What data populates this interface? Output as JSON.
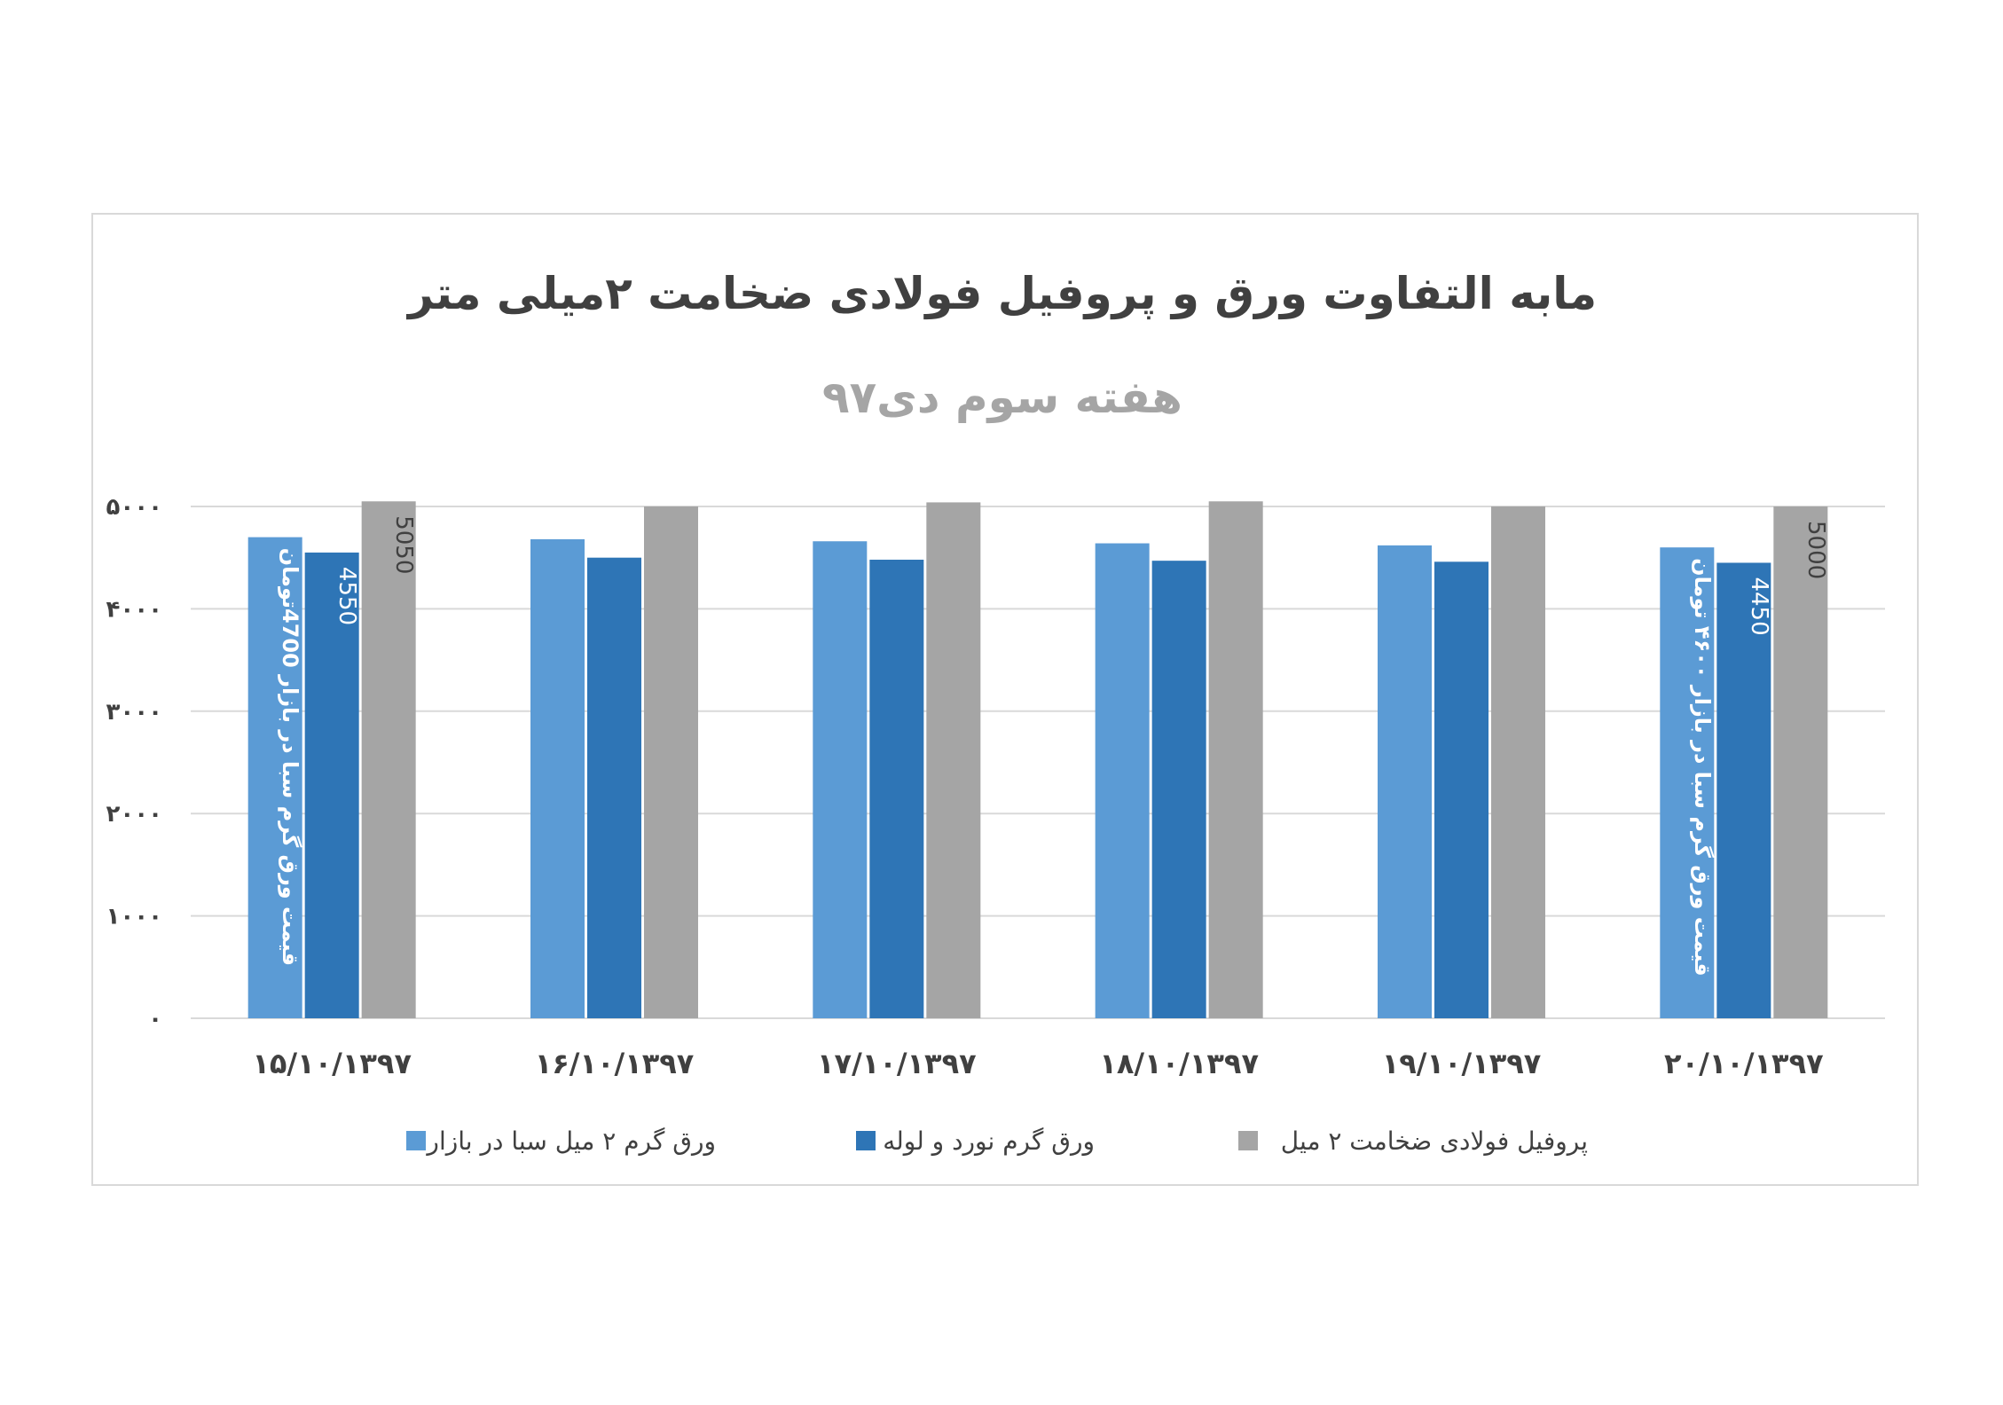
{
  "chart_data": {
    "type": "bar",
    "title": "مابه التفاوت ورق  و پروفیل فولادی ضخامت ۲میلی متر",
    "subtitle": "هفته سوم دی۹۷",
    "categories": [
      "۱۵/۱۰/۱۳۹۷",
      "۱۶/۱۰/۱۳۹۷",
      "۱۷/۱۰/۱۳۹۷",
      "۱۸/۱۰/۱۳۹۷",
      "۱۹/۱۰/۱۳۹۷",
      "۲۰/۱۰/۱۳۹۷"
    ],
    "series": [
      {
        "name": "ورق گرم ۲ میل سبا در بازار",
        "color": "#5b9bd5",
        "values": [
          4700,
          4680,
          4660,
          4640,
          4620,
          4600
        ]
      },
      {
        "name": "ورق گرم نورد و لوله",
        "color": "#2e75b6",
        "values": [
          4550,
          4500,
          4480,
          4470,
          4460,
          4450
        ]
      },
      {
        "name": "پروفیل فولادی ضخامت ۲ میل",
        "color": "#a5a5a5",
        "values": [
          5050,
          5000,
          5040,
          5050,
          5000,
          5000
        ]
      }
    ],
    "ylim": [
      0,
      5000
    ],
    "yticks": [
      0,
      1000,
      2000,
      3000,
      4000,
      5000
    ],
    "ytick_labels": [
      "۰",
      "۱۰۰۰",
      "۲۰۰۰",
      "۳۰۰۰",
      "۴۰۰۰",
      "۵۰۰۰"
    ],
    "grid": true,
    "legend_position": "bottom",
    "annotations": [
      {
        "text": "قیمت ورق گرم سبا در بازار 4700تومان",
        "category_index": 0,
        "series_index": 0
      },
      {
        "text": "4550",
        "category_index": 0,
        "series_index": 1
      },
      {
        "text": "5050",
        "category_index": 0,
        "series_index": 2
      },
      {
        "text": "قیمت ورق گرم سبا در بازار ۴۶۰۰ تومان",
        "category_index": 5,
        "series_index": 0
      },
      {
        "text": "4450",
        "category_index": 5,
        "series_index": 1
      },
      {
        "text": "5000",
        "category_index": 5,
        "series_index": 2
      }
    ]
  }
}
